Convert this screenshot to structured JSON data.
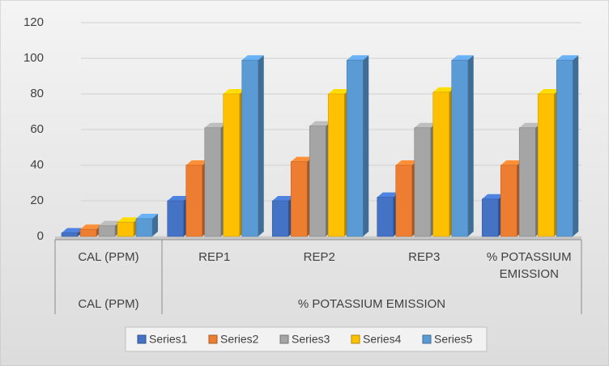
{
  "chart_data": {
    "type": "bar3d",
    "categories": [
      "CAL (PPM)",
      "REP1",
      "REP2",
      "REP3",
      "% POTASSIUM EMISSION"
    ],
    "groups": [
      {
        "label": "CAL (PPM)",
        "count": 1
      },
      {
        "label": "% POTASSIUM EMISSION",
        "count": 4
      }
    ],
    "series": [
      {
        "name": "Series1",
        "color": "#4472c4",
        "values": [
          2,
          20,
          20,
          22,
          21
        ]
      },
      {
        "name": "Series2",
        "color": "#ed7d31",
        "values": [
          4,
          40,
          42,
          40,
          40
        ]
      },
      {
        "name": "Series3",
        "color": "#a5a5a5",
        "values": [
          6,
          61,
          62,
          61,
          61
        ]
      },
      {
        "name": "Series4",
        "color": "#ffc000",
        "values": [
          8,
          80,
          80,
          81,
          80
        ]
      },
      {
        "name": "Series5",
        "color": "#5b9bd5",
        "values": [
          10,
          99,
          99,
          99,
          99
        ]
      }
    ],
    "ylim": [
      0,
      120
    ],
    "yticks": [
      0,
      20,
      40,
      60,
      80,
      100,
      120
    ],
    "grid": true
  }
}
